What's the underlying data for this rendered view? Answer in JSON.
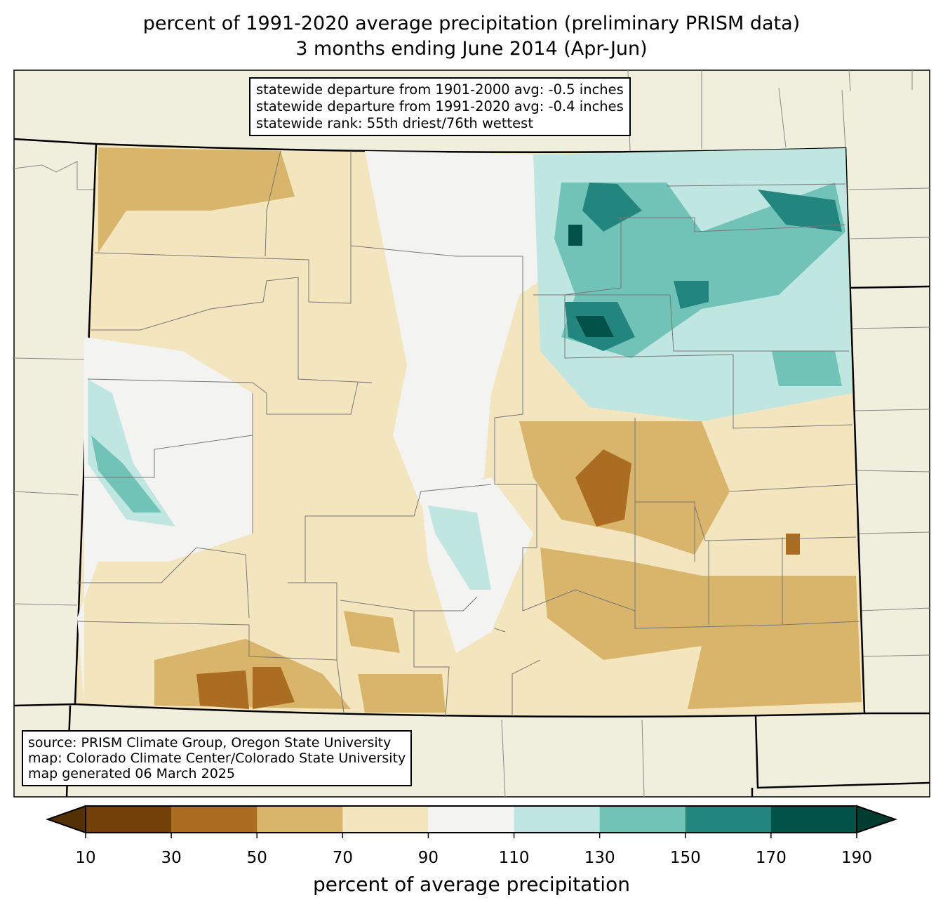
{
  "title": {
    "line1": "percent of 1991-2020 average precipitation (preliminary PRISM data)",
    "line2": "3 months ending June 2014 (Apr-Jun)"
  },
  "stats": {
    "line1": "statewide departure from 1901-2000 avg: -0.5 inches",
    "line2": "statewide departure from 1991-2020 avg: -0.4 inches",
    "line3": "statewide rank: 55th driest/76th wettest"
  },
  "credits": {
    "line1": "source: PRISM Climate Group, Oregon State University",
    "line2": "map: Colorado Climate Center/Colorado State University",
    "line3": "map generated 06 March 2025"
  },
  "colorbar": {
    "label": "percent of average precipitation",
    "ticks": [
      10,
      30,
      50,
      70,
      90,
      110,
      130,
      150,
      170,
      190
    ],
    "colors": [
      "#74400a",
      "#ab6d22",
      "#d9b46b",
      "#f3e5be",
      "#f3f4f2",
      "#bfe6e1",
      "#71c2b7",
      "#23867e",
      "#02524a"
    ],
    "under_color": "#543005",
    "over_color": "#003c30"
  },
  "colors": {
    "background": "#f0eedc",
    "state_fill": "#f3e5be"
  }
}
